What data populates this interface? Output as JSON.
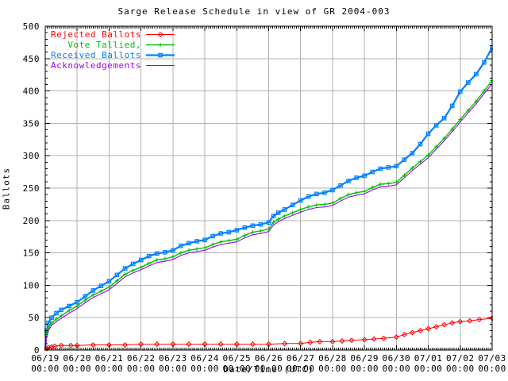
{
  "chart_data": {
    "type": "line",
    "title": "Sarge Release Schedule in view of GR 2004-003",
    "xlabel": "Date/Time (UTC)",
    "ylabel": "Ballots",
    "xlim_days": [
      0,
      14
    ],
    "ylim": [
      0,
      500
    ],
    "grid": true,
    "legend_position": "top-left",
    "grid_color": "#b2b2b2",
    "border_color": "#000000",
    "y_ticks": [
      0,
      50,
      100,
      150,
      200,
      250,
      300,
      350,
      400,
      450,
      500
    ],
    "x_ticks": [
      {
        "date": "06/19",
        "time": "00:00"
      },
      {
        "date": "06/20",
        "time": "00:00"
      },
      {
        "date": "06/21",
        "time": "00:00"
      },
      {
        "date": "06/22",
        "time": "00:00"
      },
      {
        "date": "06/23",
        "time": "00:00"
      },
      {
        "date": "06/24",
        "time": "00:00"
      },
      {
        "date": "06/25",
        "time": "00:00"
      },
      {
        "date": "06/26",
        "time": "00:00"
      },
      {
        "date": "06/27",
        "time": "00:00"
      },
      {
        "date": "06/28",
        "time": "00:00"
      },
      {
        "date": "06/29",
        "time": "00:00"
      },
      {
        "date": "06/30",
        "time": "00:00"
      },
      {
        "date": "07/01",
        "time": "00:00"
      },
      {
        "date": "07/02",
        "time": "00:00"
      },
      {
        "date": "07/03",
        "time": "00:00"
      }
    ],
    "series": [
      {
        "name": "Rejected Ballots",
        "color": "#ff0000",
        "marker": "diamond",
        "line_width": 1,
        "points": [
          [
            0,
            0
          ],
          [
            0.05,
            2
          ],
          [
            0.1,
            4
          ],
          [
            0.2,
            5
          ],
          [
            0.3,
            6
          ],
          [
            0.5,
            7
          ],
          [
            0.8,
            7
          ],
          [
            1,
            7
          ],
          [
            1.5,
            8
          ],
          [
            2,
            8
          ],
          [
            2.5,
            8
          ],
          [
            3,
            9
          ],
          [
            3.5,
            9
          ],
          [
            4,
            9
          ],
          [
            4.5,
            9
          ],
          [
            5,
            9
          ],
          [
            5.5,
            9
          ],
          [
            6,
            9
          ],
          [
            6.5,
            9
          ],
          [
            7,
            9
          ],
          [
            7.5,
            10
          ],
          [
            8,
            10
          ],
          [
            8.3,
            12
          ],
          [
            8.6,
            13
          ],
          [
            9,
            13
          ],
          [
            9.3,
            14
          ],
          [
            9.6,
            15
          ],
          [
            10,
            16
          ],
          [
            10.3,
            17
          ],
          [
            10.6,
            18
          ],
          [
            11,
            20
          ],
          [
            11.25,
            24
          ],
          [
            11.5,
            27
          ],
          [
            11.75,
            30
          ],
          [
            12,
            33
          ],
          [
            12.25,
            36
          ],
          [
            12.5,
            39
          ],
          [
            12.75,
            42
          ],
          [
            13,
            44
          ],
          [
            13.3,
            45
          ],
          [
            13.6,
            47
          ],
          [
            14,
            49
          ]
        ]
      },
      {
        "name": "Vote Tallied,",
        "color": "#00c000",
        "marker": "plus",
        "line_width": 1.4,
        "points": [
          [
            0,
            0
          ],
          [
            0.04,
            24
          ],
          [
            0.1,
            34
          ],
          [
            0.2,
            42
          ],
          [
            0.35,
            48
          ],
          [
            0.5,
            53
          ],
          [
            0.75,
            61
          ],
          [
            1,
            68
          ],
          [
            1.25,
            77
          ],
          [
            1.5,
            85
          ],
          [
            1.75,
            91
          ],
          [
            2,
            97
          ],
          [
            2.25,
            107
          ],
          [
            2.5,
            117
          ],
          [
            2.75,
            123
          ],
          [
            3,
            128
          ],
          [
            3.25,
            134
          ],
          [
            3.5,
            139
          ],
          [
            3.75,
            141
          ],
          [
            4,
            144
          ],
          [
            4.25,
            150
          ],
          [
            4.5,
            154
          ],
          [
            4.75,
            156
          ],
          [
            5,
            158
          ],
          [
            5.25,
            163
          ],
          [
            5.5,
            167
          ],
          [
            5.75,
            169
          ],
          [
            6,
            171
          ],
          [
            6.25,
            177
          ],
          [
            6.5,
            182
          ],
          [
            6.75,
            184
          ],
          [
            7,
            187
          ],
          [
            7.15,
            197
          ],
          [
            7.3,
            202
          ],
          [
            7.5,
            207
          ],
          [
            7.75,
            212
          ],
          [
            8,
            217
          ],
          [
            8.25,
            221
          ],
          [
            8.5,
            224
          ],
          [
            8.75,
            225
          ],
          [
            9,
            227
          ],
          [
            9.25,
            234
          ],
          [
            9.5,
            240
          ],
          [
            9.75,
            243
          ],
          [
            10,
            245
          ],
          [
            10.25,
            251
          ],
          [
            10.5,
            256
          ],
          [
            10.75,
            257
          ],
          [
            11,
            259
          ],
          [
            11.25,
            270
          ],
          [
            11.5,
            281
          ],
          [
            11.75,
            291
          ],
          [
            12,
            301
          ],
          [
            12.25,
            314
          ],
          [
            12.5,
            327
          ],
          [
            12.75,
            341
          ],
          [
            13,
            356
          ],
          [
            13.25,
            370
          ],
          [
            13.5,
            384
          ],
          [
            13.75,
            400
          ],
          [
            14,
            416
          ]
        ]
      },
      {
        "name": "Received Ballots",
        "color": "#0080ff",
        "marker": "square",
        "line_width": 2.2,
        "points": [
          [
            0,
            0
          ],
          [
            0.04,
            30
          ],
          [
            0.1,
            42
          ],
          [
            0.2,
            50
          ],
          [
            0.35,
            57
          ],
          [
            0.5,
            62
          ],
          [
            0.75,
            68
          ],
          [
            1,
            74
          ],
          [
            1.25,
            83
          ],
          [
            1.5,
            92
          ],
          [
            1.75,
            99
          ],
          [
            2,
            106
          ],
          [
            2.25,
            116
          ],
          [
            2.5,
            126
          ],
          [
            2.75,
            133
          ],
          [
            3,
            139
          ],
          [
            3.25,
            145
          ],
          [
            3.5,
            149
          ],
          [
            3.75,
            151
          ],
          [
            4,
            154
          ],
          [
            4.25,
            161
          ],
          [
            4.5,
            165
          ],
          [
            4.75,
            168
          ],
          [
            5,
            170
          ],
          [
            5.25,
            176
          ],
          [
            5.5,
            180
          ],
          [
            5.75,
            182
          ],
          [
            6,
            185
          ],
          [
            6.25,
            189
          ],
          [
            6.5,
            192
          ],
          [
            6.75,
            194
          ],
          [
            7,
            197
          ],
          [
            7.15,
            207
          ],
          [
            7.3,
            212
          ],
          [
            7.5,
            217
          ],
          [
            7.75,
            224
          ],
          [
            8,
            231
          ],
          [
            8.25,
            237
          ],
          [
            8.5,
            241
          ],
          [
            8.75,
            243
          ],
          [
            9,
            247
          ],
          [
            9.25,
            254
          ],
          [
            9.5,
            261
          ],
          [
            9.75,
            266
          ],
          [
            10,
            269
          ],
          [
            10.25,
            275
          ],
          [
            10.5,
            280
          ],
          [
            10.75,
            282
          ],
          [
            11,
            284
          ],
          [
            11.25,
            294
          ],
          [
            11.5,
            304
          ],
          [
            11.75,
            318
          ],
          [
            12,
            334
          ],
          [
            12.25,
            347
          ],
          [
            12.5,
            358
          ],
          [
            12.75,
            377
          ],
          [
            13,
            399
          ],
          [
            13.25,
            413
          ],
          [
            13.5,
            426
          ],
          [
            13.75,
            444
          ],
          [
            14,
            467
          ]
        ]
      },
      {
        "name": "Acknowledgements",
        "color": "#a000f0",
        "marker": "none",
        "line_width": 1.1,
        "points": [
          [
            0,
            0
          ],
          [
            0.04,
            20
          ],
          [
            0.1,
            30
          ],
          [
            0.2,
            38
          ],
          [
            0.35,
            44
          ],
          [
            0.5,
            49
          ],
          [
            0.75,
            57
          ],
          [
            1,
            64
          ],
          [
            1.25,
            73
          ],
          [
            1.5,
            81
          ],
          [
            1.75,
            87
          ],
          [
            2,
            93
          ],
          [
            2.25,
            103
          ],
          [
            2.5,
            113
          ],
          [
            2.75,
            119
          ],
          [
            3,
            124
          ],
          [
            3.25,
            130
          ],
          [
            3.5,
            135
          ],
          [
            3.75,
            137
          ],
          [
            4,
            140
          ],
          [
            4.25,
            146
          ],
          [
            4.5,
            150
          ],
          [
            4.75,
            152
          ],
          [
            5,
            154
          ],
          [
            5.25,
            159
          ],
          [
            5.5,
            163
          ],
          [
            5.75,
            165
          ],
          [
            6,
            167
          ],
          [
            6.25,
            173
          ],
          [
            6.5,
            178
          ],
          [
            6.75,
            180
          ],
          [
            7,
            183
          ],
          [
            7.15,
            193
          ],
          [
            7.3,
            198
          ],
          [
            7.5,
            203
          ],
          [
            7.75,
            208
          ],
          [
            8,
            213
          ],
          [
            8.25,
            217
          ],
          [
            8.5,
            220
          ],
          [
            8.75,
            221
          ],
          [
            9,
            223
          ],
          [
            9.25,
            230
          ],
          [
            9.5,
            236
          ],
          [
            9.75,
            239
          ],
          [
            10,
            241
          ],
          [
            10.25,
            247
          ],
          [
            10.5,
            252
          ],
          [
            10.75,
            253
          ],
          [
            11,
            255
          ],
          [
            11.25,
            266
          ],
          [
            11.5,
            277
          ],
          [
            11.75,
            287
          ],
          [
            12,
            297
          ],
          [
            12.25,
            310
          ],
          [
            12.5,
            323
          ],
          [
            12.75,
            337
          ],
          [
            13,
            352
          ],
          [
            13.25,
            366
          ],
          [
            13.5,
            380
          ],
          [
            13.75,
            396
          ],
          [
            14,
            411
          ]
        ]
      }
    ]
  }
}
